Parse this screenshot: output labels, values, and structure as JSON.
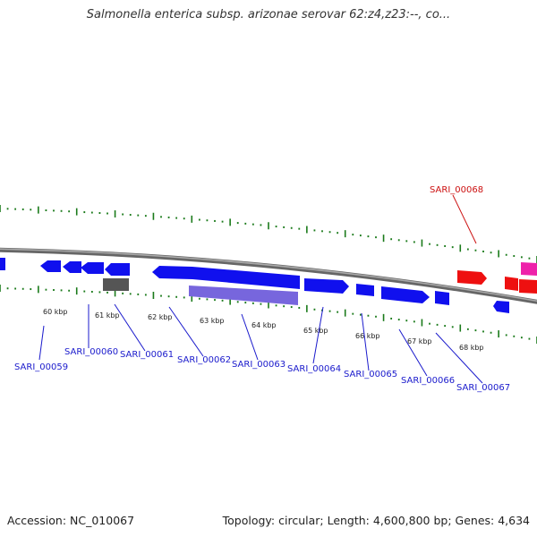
{
  "title": "Salmonella enterica subsp. arizonae serovar 62:z4,z23:--, co...",
  "footer": {
    "accession": "Accession: NC_010067",
    "summary": "Topology: circular; Length: 4,600,800 bp; Genes: 4,634"
  },
  "colors": {
    "forward_gene": "#1010ee",
    "reverse_gene": "#ee1010",
    "rna_gene": "#ee22aa",
    "pseudo_gene": "#555555",
    "region": "#7766dd",
    "backbone": "#888888",
    "tick": "#1a7a1a",
    "label_blue": "#1a1acc",
    "label_red": "#cc1111"
  },
  "kbp_ticks": [
    {
      "label": "60 kbp"
    },
    {
      "label": "61 kbp"
    },
    {
      "label": "62 kbp"
    },
    {
      "label": "63 kbp"
    },
    {
      "label": "64 kbp"
    },
    {
      "label": "65 kbp"
    },
    {
      "label": "66 kbp"
    },
    {
      "label": "67 kbp"
    },
    {
      "label": "68 kbp"
    }
  ],
  "gene_labels": [
    {
      "label": "SARI_00059"
    },
    {
      "label": "SARI_00060"
    },
    {
      "label": "SARI_00061"
    },
    {
      "label": "SARI_00062"
    },
    {
      "label": "SARI_00063"
    },
    {
      "label": "SARI_00064"
    },
    {
      "label": "SARI_00065"
    },
    {
      "label": "SARI_00066"
    },
    {
      "label": "SARI_00067"
    },
    {
      "label": "SARI_00068"
    }
  ]
}
